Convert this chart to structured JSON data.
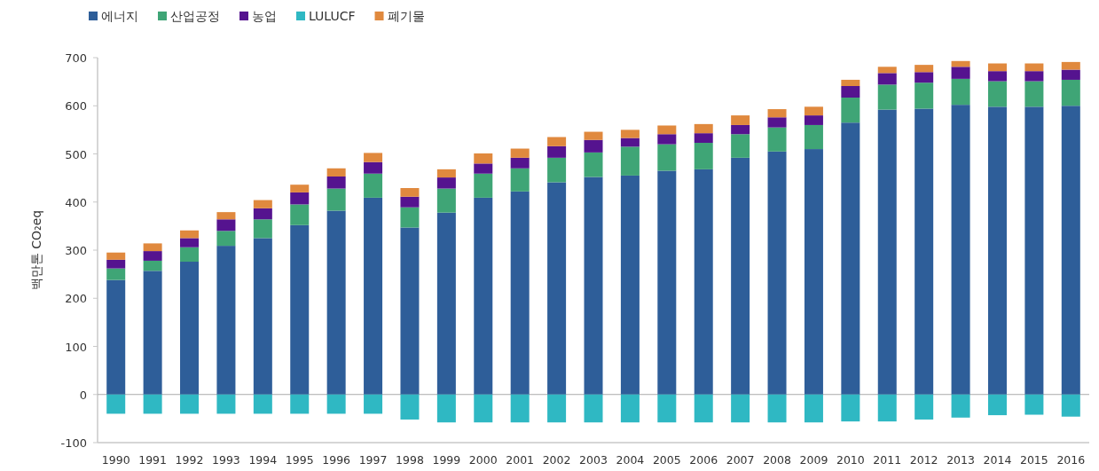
{
  "chart_data": {
    "type": "bar",
    "stacked": true,
    "ylabel": "백만톤 CO₂eq",
    "legend": "top left",
    "categories": [
      "1990",
      "1991",
      "1992",
      "1993",
      "1994",
      "1995",
      "1996",
      "1997",
      "1998",
      "1999",
      "2000",
      "2001",
      "2002",
      "2003",
      "2004",
      "2005",
      "2006",
      "2007",
      "2008",
      "2009",
      "2010",
      "2011",
      "2012",
      "2013",
      "2014",
      "2015",
      "2016"
    ],
    "ylim": [
      -100,
      700
    ],
    "yticks": [
      -100,
      0,
      100,
      200,
      300,
      400,
      500,
      600,
      700
    ],
    "series": [
      {
        "name": "에너지",
        "color": "#2e5e99",
        "values": [
          238,
          257,
          276,
          309,
          325,
          352,
          382,
          409,
          347,
          378,
          409,
          422,
          441,
          452,
          455,
          465,
          468,
          492,
          505,
          510,
          565,
          592,
          594,
          602,
          598,
          598,
          600
        ]
      },
      {
        "name": "산업공정",
        "color": "#3fa576",
        "values": [
          24,
          21,
          30,
          31,
          39,
          43,
          46,
          50,
          42,
          50,
          50,
          48,
          51,
          51,
          60,
          55,
          55,
          49,
          50,
          50,
          52,
          52,
          54,
          54,
          53,
          53,
          54
        ]
      },
      {
        "name": "농업",
        "color": "#55138f",
        "values": [
          18,
          20,
          19,
          24,
          23,
          25,
          25,
          24,
          22,
          23,
          21,
          22,
          24,
          26,
          18,
          21,
          20,
          19,
          21,
          20,
          24,
          24,
          22,
          25,
          21,
          21,
          21
        ]
      },
      {
        "name": "LULUCF",
        "color": "#2fb8c3",
        "values": [
          -40,
          -40,
          -40,
          -40,
          -40,
          -40,
          -40,
          -40,
          -52,
          -58,
          -58,
          -58,
          -58,
          -58,
          -58,
          -58,
          -58,
          -58,
          -58,
          -58,
          -56,
          -56,
          -52,
          -48,
          -43,
          -42,
          -46
        ]
      },
      {
        "name": "폐기물",
        "color": "#e0893e",
        "values": [
          15,
          16,
          16,
          15,
          17,
          16,
          17,
          19,
          18,
          17,
          21,
          19,
          19,
          17,
          17,
          18,
          19,
          20,
          17,
          18,
          13,
          13,
          15,
          12,
          16,
          16,
          16
        ]
      }
    ]
  }
}
